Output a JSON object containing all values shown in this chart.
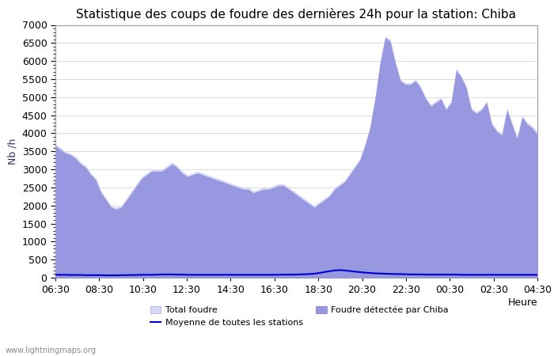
{
  "title": "Statistique des coups de foudre des dernières 24h pour la station: Chiba",
  "ylabel": "Nb /h",
  "xlabel": "Heure",
  "watermark": "www.lightningmaps.org",
  "ylim": [
    0,
    7000
  ],
  "yticks": [
    0,
    500,
    1000,
    1500,
    2000,
    2500,
    3000,
    3500,
    4000,
    4500,
    5000,
    5500,
    6000,
    6500,
    7000
  ],
  "xtick_labels": [
    "06:30",
    "08:30",
    "10:30",
    "12:30",
    "14:30",
    "16:30",
    "18:30",
    "20:30",
    "22:30",
    "00:30",
    "02:30",
    "04:30"
  ],
  "n_points": 96,
  "total_foudre": [
    3700,
    3600,
    3500,
    3450,
    3350,
    3200,
    3100,
    2900,
    2750,
    2400,
    2200,
    2000,
    1950,
    2000,
    2200,
    2400,
    2600,
    2800,
    2900,
    3000,
    3000,
    3000,
    3100,
    3200,
    3100,
    2950,
    2850,
    2900,
    2950,
    2900,
    2850,
    2800,
    2750,
    2700,
    2650,
    2600,
    2550,
    2500,
    2500,
    2400,
    2450,
    2500,
    2500,
    2550,
    2600,
    2600,
    2500,
    2400,
    2300,
    2200,
    2100,
    2000,
    2100,
    2200,
    2300,
    2500,
    2600,
    2700,
    2900,
    3100,
    3300,
    3700,
    4200,
    5000,
    6000,
    6700,
    6600,
    6000,
    5500,
    5400,
    5400,
    5500,
    5300,
    5000,
    4800,
    4900,
    5000,
    4700,
    4900,
    5800,
    5600,
    5300,
    4700,
    4600,
    4700,
    4900,
    4300,
    4100,
    4000,
    4700,
    4300,
    3900,
    4500,
    4300,
    4200,
    4050
  ],
  "chiba": [
    3650,
    3550,
    3450,
    3400,
    3300,
    3150,
    3050,
    2850,
    2700,
    2350,
    2150,
    1950,
    1900,
    1950,
    2150,
    2350,
    2550,
    2750,
    2850,
    2950,
    2950,
    2950,
    3050,
    3150,
    3050,
    2900,
    2800,
    2850,
    2900,
    2850,
    2800,
    2750,
    2700,
    2650,
    2600,
    2550,
    2500,
    2450,
    2450,
    2350,
    2400,
    2450,
    2450,
    2500,
    2550,
    2550,
    2450,
    2350,
    2250,
    2150,
    2050,
    1950,
    2050,
    2150,
    2250,
    2450,
    2550,
    2650,
    2850,
    3050,
    3250,
    3650,
    4150,
    4950,
    5950,
    6650,
    6550,
    5950,
    5450,
    5350,
    5350,
    5450,
    5250,
    4950,
    4750,
    4850,
    4950,
    4650,
    4850,
    5750,
    5550,
    5250,
    4650,
    4550,
    4650,
    4850,
    4250,
    4050,
    3950,
    4650,
    4250,
    3850,
    4450,
    4250,
    4150,
    3950
  ],
  "moyenne": [
    80,
    80,
    80,
    75,
    75,
    75,
    70,
    70,
    70,
    70,
    65,
    65,
    65,
    70,
    70,
    75,
    75,
    80,
    80,
    80,
    85,
    90,
    90,
    90,
    85,
    85,
    80,
    80,
    80,
    80,
    80,
    80,
    80,
    80,
    80,
    80,
    80,
    80,
    80,
    80,
    80,
    80,
    80,
    80,
    80,
    85,
    85,
    85,
    90,
    95,
    100,
    110,
    130,
    155,
    180,
    200,
    210,
    200,
    185,
    170,
    155,
    140,
    130,
    120,
    115,
    110,
    105,
    100,
    100,
    95,
    90,
    90,
    90,
    85,
    85,
    85,
    85,
    85,
    85,
    85,
    80,
    80,
    80,
    80,
    80,
    80,
    80,
    80,
    80,
    80,
    80,
    80,
    80,
    80,
    80,
    80
  ],
  "total_color": "#d8d8f8",
  "chiba_color": "#9898e0",
  "moyenne_color": "#0000cc",
  "bg_color": "#ffffff",
  "plot_bg_color": "#ffffff",
  "grid_color": "#cccccc",
  "title_fontsize": 11,
  "tick_fontsize": 9,
  "label_fontsize": 9
}
